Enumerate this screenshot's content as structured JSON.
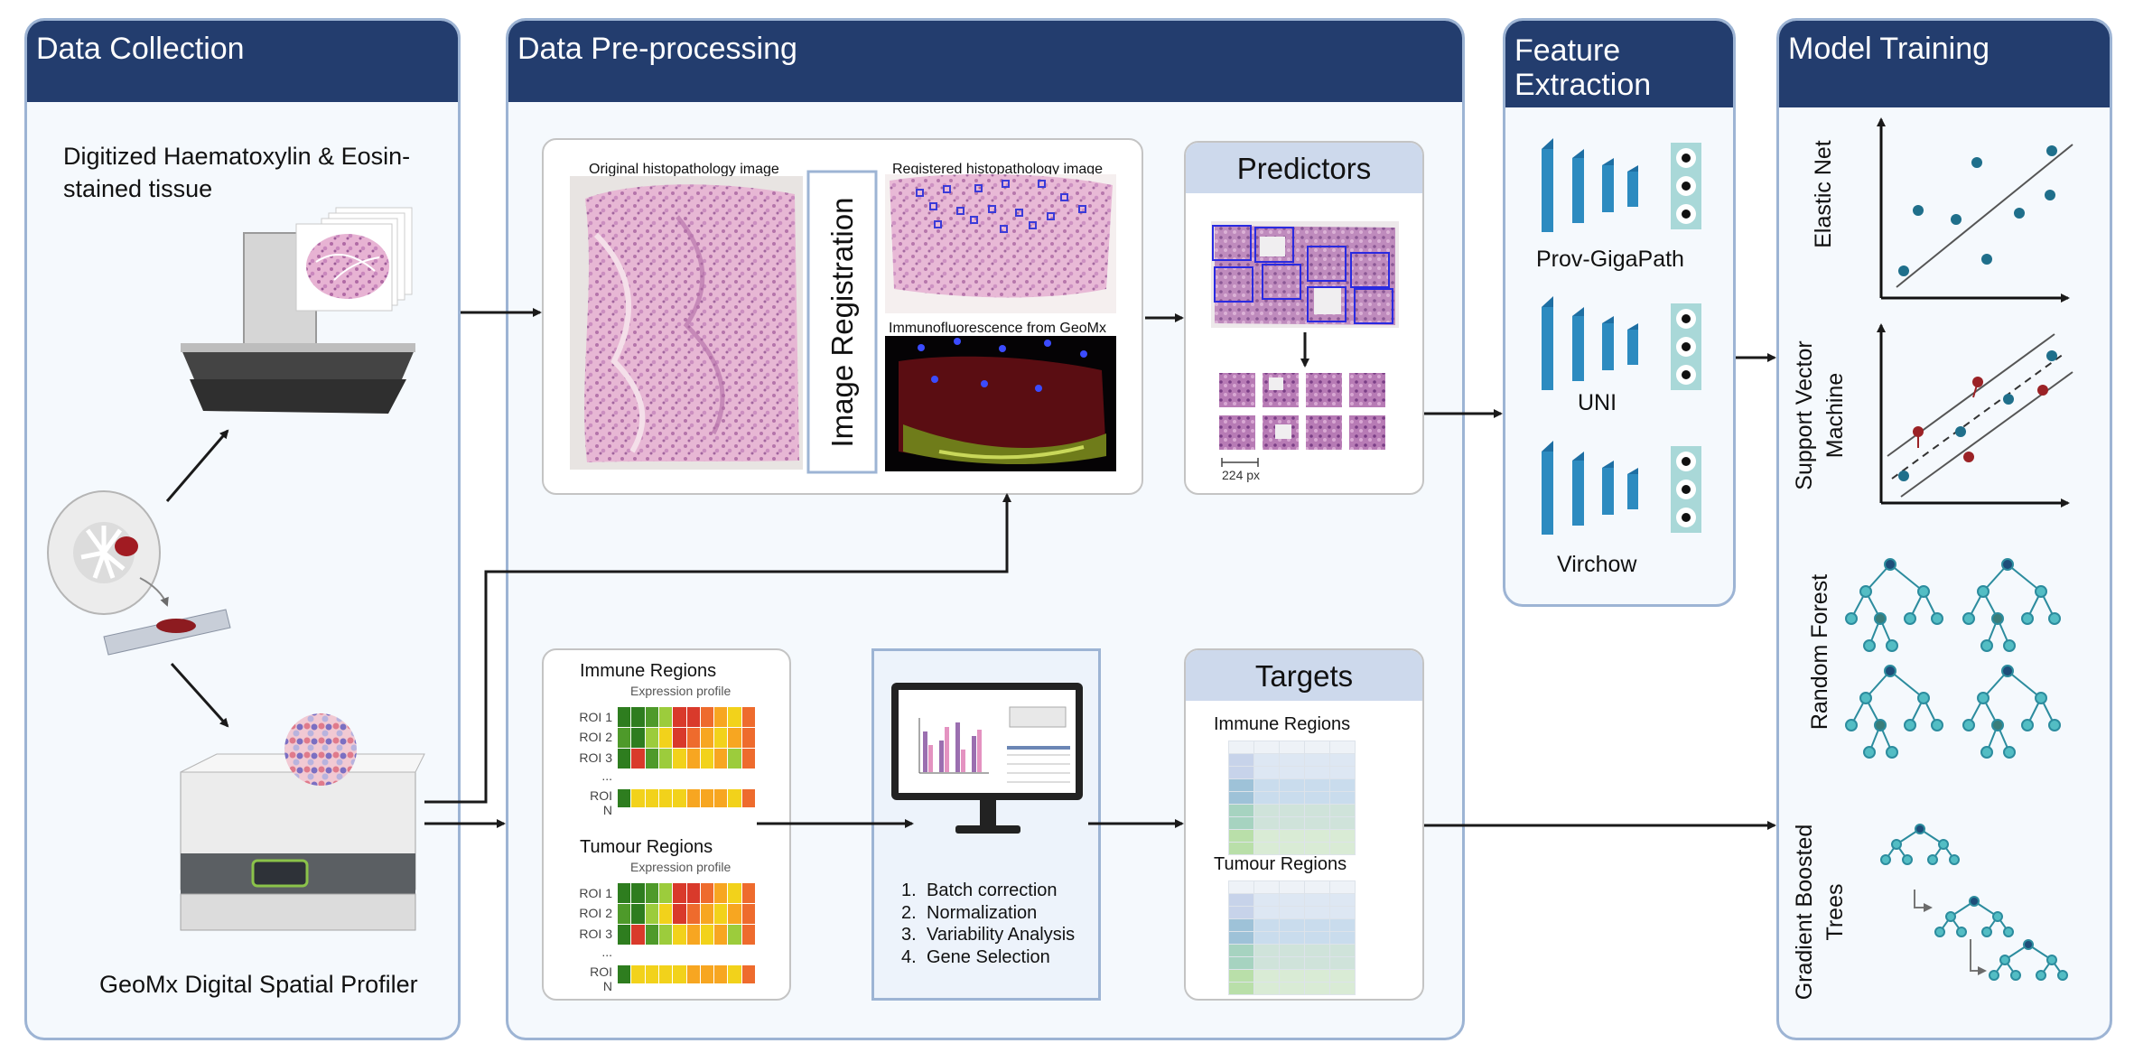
{
  "panels": {
    "collection": {
      "title": "Data Collection"
    },
    "preprocessing": {
      "title": "Data Pre-processing"
    },
    "feature": {
      "title_line1": "Feature",
      "title_line2": "Extraction"
    },
    "training": {
      "title": "Model Training"
    }
  },
  "collection": {
    "he_label_line1": "Digitized Haematoxylin & Eosin-",
    "he_label_line2": "stained tissue",
    "geomx_label": "GeoMx Digital Spatial Profiler"
  },
  "registration": {
    "original_label": "Original histopathology image",
    "registered_label": "Registered histopathology image",
    "immuno_label": "Immunofluorescence from GeoMx",
    "box_label": "Image Registration"
  },
  "predictors": {
    "title": "Predictors",
    "scale_label": "224 px"
  },
  "expression": {
    "immune_title": "Immune Regions",
    "tumour_title": "Tumour Regions",
    "profile_label": "Expression profile",
    "rows": [
      "ROI 1",
      "ROI 2",
      "ROI 3",
      "...",
      "ROI N"
    ]
  },
  "processing": {
    "steps": [
      "Batch correction",
      "Normalization",
      "Variability Analysis",
      "Gene Selection"
    ],
    "numbers": [
      "1.",
      "2.",
      "3.",
      "4."
    ]
  },
  "targets": {
    "title": "Targets",
    "immune_title": "Immune Regions",
    "tumour_title": "Tumour Regions"
  },
  "features": {
    "models": [
      "Prov-GigaPath",
      "UNI",
      "Virchow"
    ]
  },
  "models": {
    "elastic_net": "Elastic Net",
    "svm_line1": "Support Vector",
    "svm_line2": "Machine",
    "random_forest": "Random Forest",
    "gbt_line1": "Gradient Boosted",
    "gbt_line2": "Trees"
  },
  "colors": {
    "header": "#233d6e",
    "panel_bg": "#f5f9fd",
    "panel_border": "#9db4d4",
    "teal": "#1f6f8b",
    "dark_red": "#9b2226",
    "cnn_blue": "#2d8bc0"
  }
}
